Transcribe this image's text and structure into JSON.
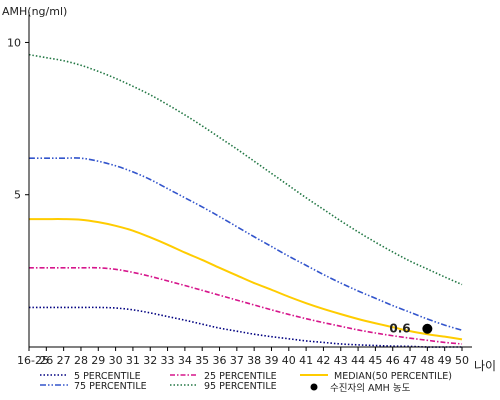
{
  "chart_data": {
    "type": "line",
    "ylabel": "AMH(ng/ml)",
    "xlabel": "나이",
    "ylim": [
      0,
      11
    ],
    "yticks": [
      10,
      5
    ],
    "x": [
      "16-25",
      "26",
      "27",
      "28",
      "29",
      "30",
      "31",
      "32",
      "33",
      "34",
      "35",
      "36",
      "37",
      "38",
      "39",
      "40",
      "41",
      "42",
      "43",
      "44",
      "45",
      "46",
      "47",
      "48",
      "49",
      "50"
    ],
    "grid": false,
    "legend_position": "bottom",
    "series": [
      {
        "name": "5 PERCENTILE",
        "color": "#000080",
        "dash": "dotted",
        "values": [
          1.3,
          1.3,
          1.3,
          1.3,
          1.3,
          1.28,
          1.22,
          1.12,
          1.0,
          0.88,
          0.75,
          0.62,
          0.52,
          0.42,
          0.34,
          0.27,
          0.2,
          0.15,
          0.1,
          0.07,
          0.05,
          0.03,
          0.02,
          0.0,
          0.0,
          0.0
        ]
      },
      {
        "name": "25 PERCENTILE",
        "color": "#d6168c",
        "dash": "dashdot",
        "values": [
          2.6,
          2.6,
          2.6,
          2.6,
          2.6,
          2.55,
          2.45,
          2.32,
          2.17,
          2.02,
          1.86,
          1.7,
          1.54,
          1.38,
          1.22,
          1.07,
          0.93,
          0.8,
          0.68,
          0.56,
          0.46,
          0.37,
          0.29,
          0.22,
          0.15,
          0.1
        ]
      },
      {
        "name": "MEDIAN(50 PERCENTILE)",
        "color": "#ffcc00",
        "dash": "solid",
        "values": [
          4.2,
          4.2,
          4.2,
          4.18,
          4.1,
          3.98,
          3.82,
          3.6,
          3.36,
          3.1,
          2.86,
          2.6,
          2.35,
          2.1,
          1.88,
          1.65,
          1.44,
          1.25,
          1.08,
          0.92,
          0.78,
          0.65,
          0.52,
          0.42,
          0.34,
          0.25
        ]
      },
      {
        "name": "75 PERCENTILE",
        "color": "#3355cc",
        "dash": "dashdotdot",
        "values": [
          6.2,
          6.2,
          6.2,
          6.2,
          6.1,
          5.95,
          5.75,
          5.5,
          5.2,
          4.9,
          4.6,
          4.28,
          3.95,
          3.62,
          3.3,
          2.98,
          2.68,
          2.38,
          2.1,
          1.84,
          1.6,
          1.36,
          1.14,
          0.92,
          0.72,
          0.55
        ]
      },
      {
        "name": "95 PERCENTILE",
        "color": "#227744",
        "dash": "dotted",
        "values": [
          9.6,
          9.5,
          9.4,
          9.25,
          9.05,
          8.82,
          8.56,
          8.28,
          7.96,
          7.62,
          7.26,
          6.88,
          6.5,
          6.1,
          5.7,
          5.3,
          4.9,
          4.52,
          4.14,
          3.78,
          3.44,
          3.12,
          2.82,
          2.56,
          2.3,
          2.05
        ]
      }
    ],
    "highlight": {
      "label": "수진자의 AMH 농도",
      "x": "48",
      "y": 0.6,
      "text": "0.6"
    }
  }
}
